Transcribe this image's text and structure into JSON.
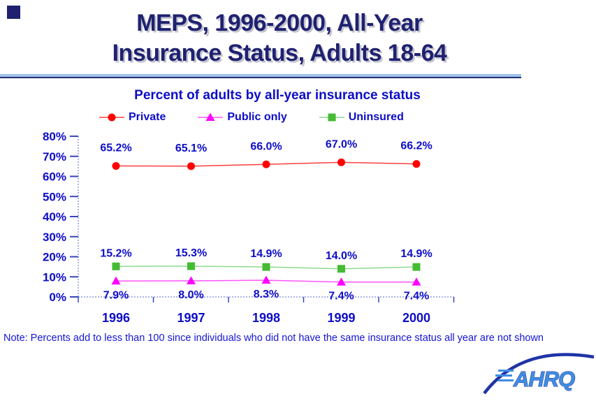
{
  "slide": {
    "title_line1": "MEPS, 1996-2000, All-Year",
    "title_line2": "Insurance Status, Adults 18-64",
    "note": "Note: Percents add to less than 100 since individuals who did not have the same insurance status all year are not shown",
    "logo_text": "AHRQ"
  },
  "chart_data": {
    "type": "line",
    "title": "Percent of adults by all-year insurance status",
    "categories": [
      "1996",
      "1997",
      "1998",
      "1999",
      "2000"
    ],
    "series": [
      {
        "name": "Private",
        "values": [
          65.2,
          65.1,
          66.0,
          67.0,
          66.2
        ],
        "color": "#FF0000",
        "line_color": "#FF4040",
        "marker": "circle",
        "label_position": "above"
      },
      {
        "name": "Public only",
        "values": [
          7.9,
          8.0,
          8.3,
          7.4,
          7.4
        ],
        "color": "#FF00FF",
        "line_color": "#FF55FF",
        "marker": "triangle",
        "label_position": "below"
      },
      {
        "name": "Uninsured",
        "values": [
          15.2,
          15.3,
          14.9,
          14.0,
          14.9
        ],
        "color": "#44BB33",
        "line_color": "#8FD98F",
        "marker": "square",
        "label_position": "above"
      }
    ],
    "y_ticks": [
      "0%",
      "10%",
      "20%",
      "30%",
      "40%",
      "50%",
      "60%",
      "70%",
      "80%"
    ],
    "ylim": [
      0,
      80
    ],
    "xlabel": "",
    "ylabel": "",
    "grid": false,
    "legend_position": "top",
    "axis_color": "#5A6AD0",
    "tick_color": "#3946BE",
    "label_color": "#0D0DC8"
  }
}
